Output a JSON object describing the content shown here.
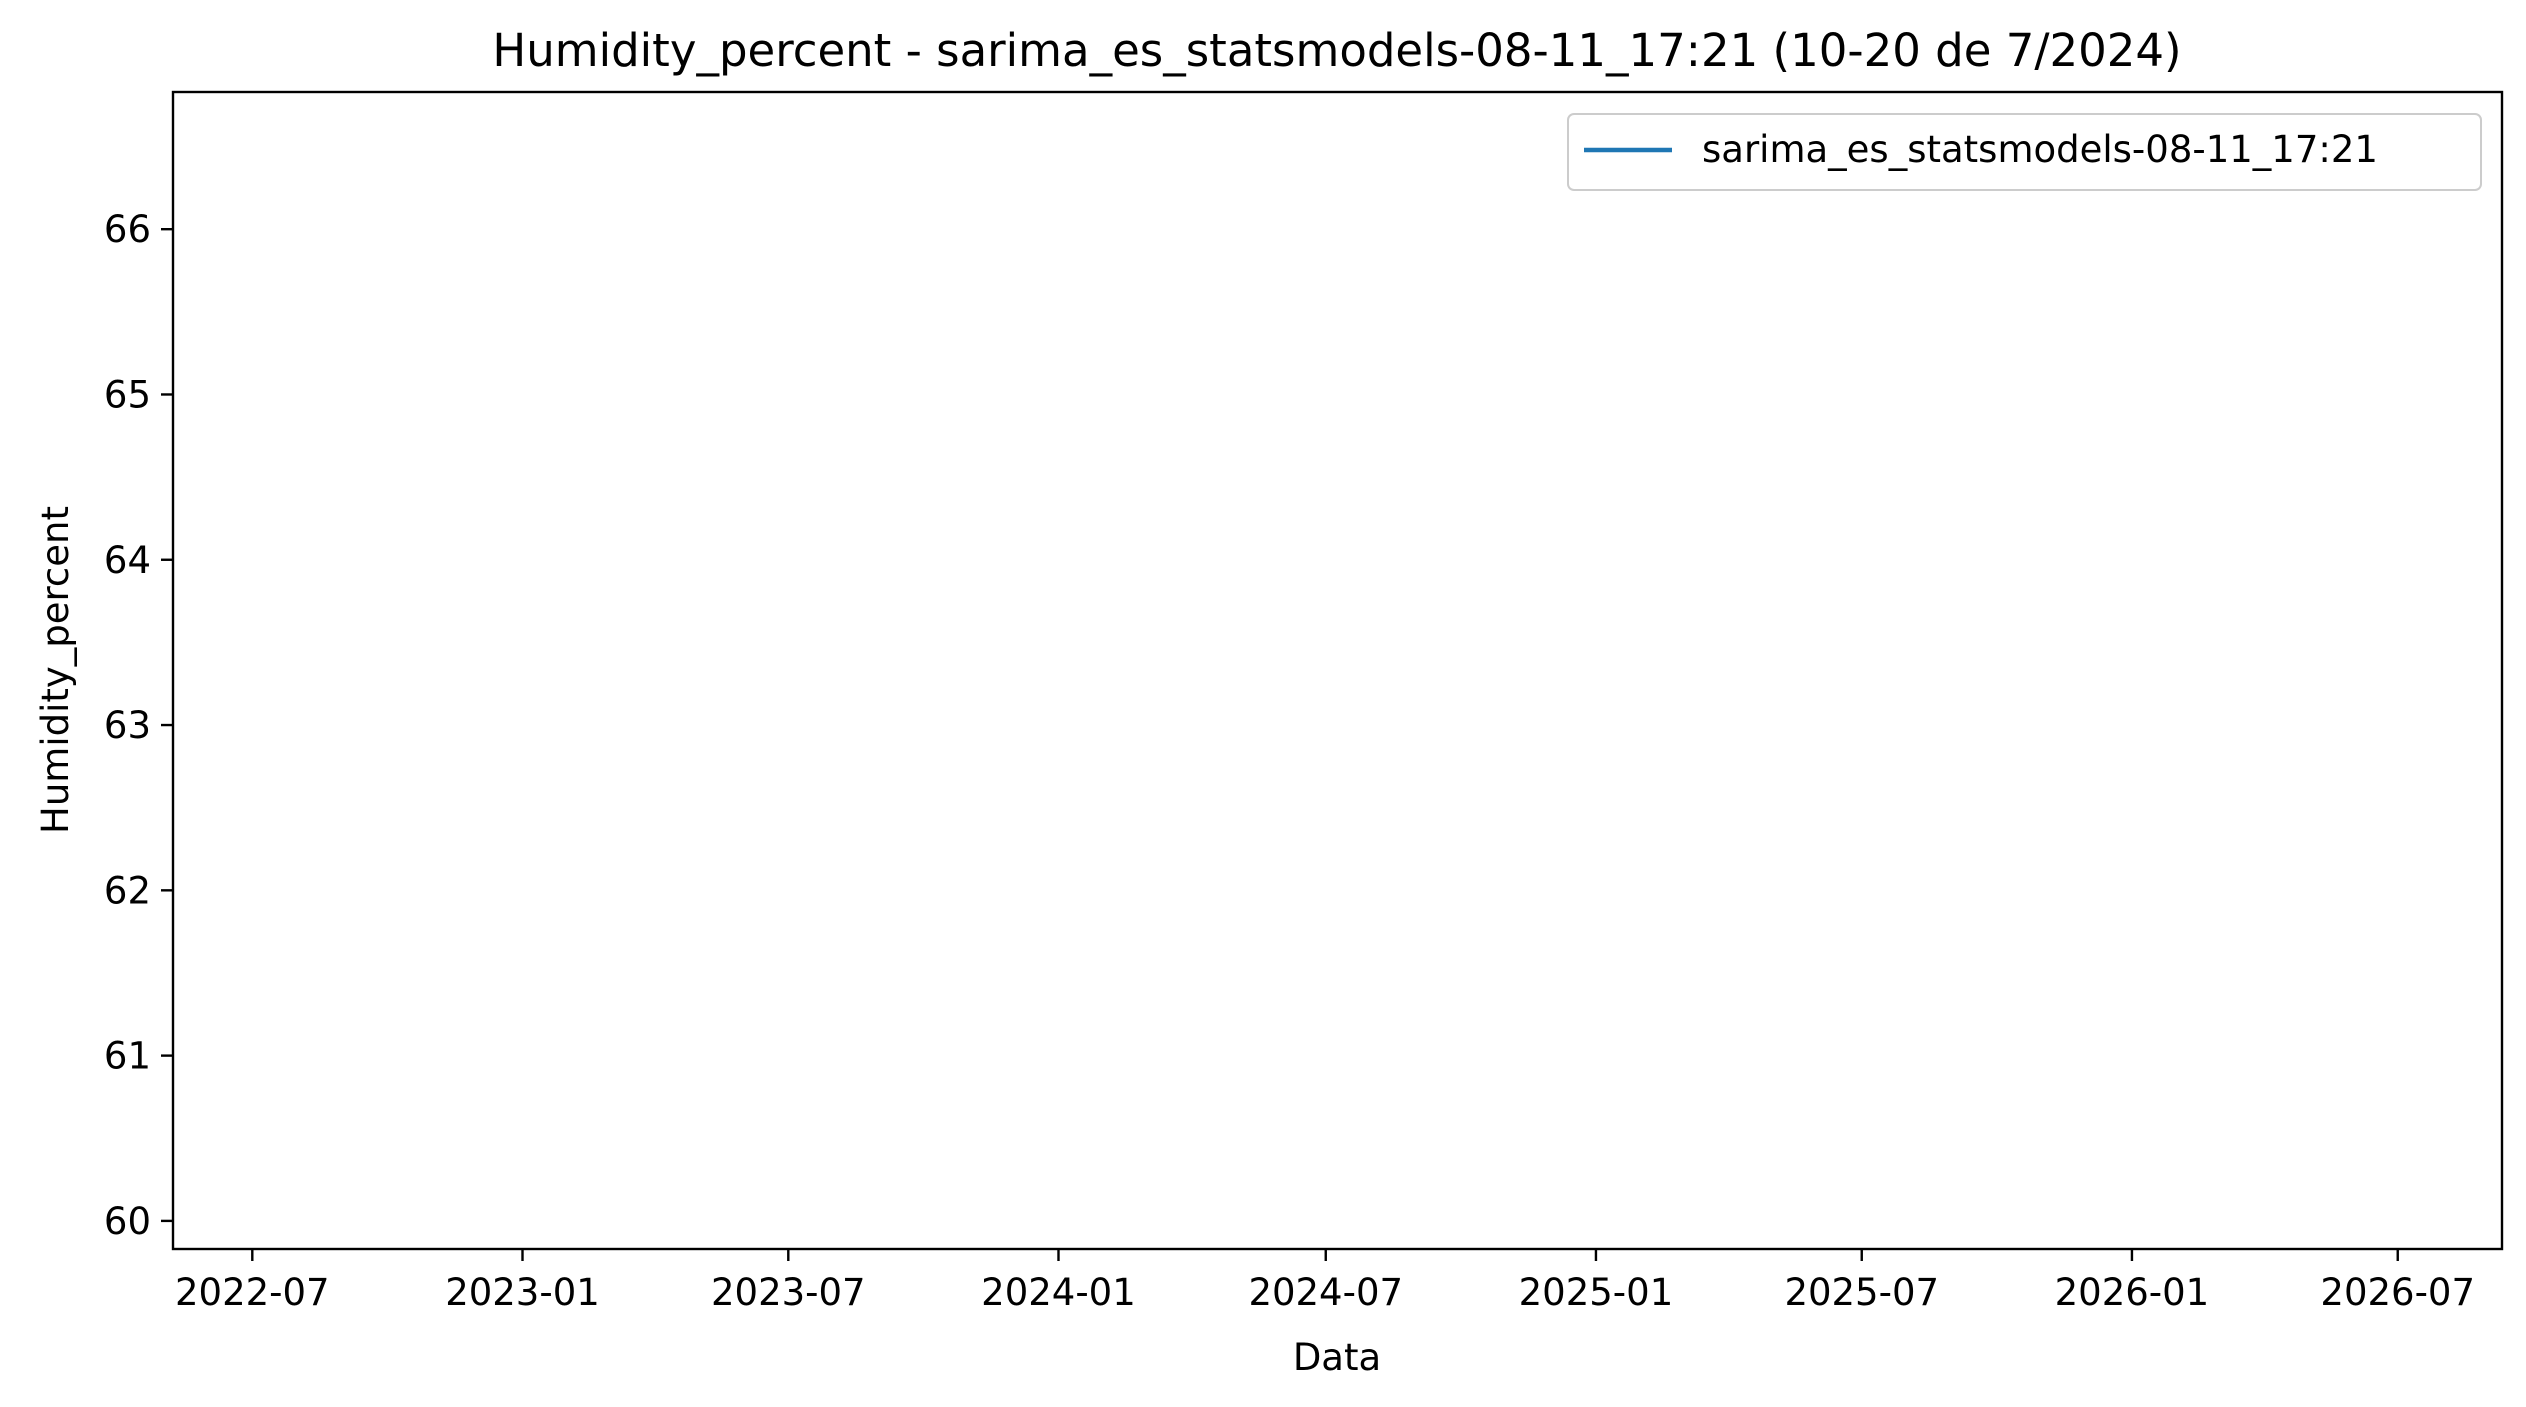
{
  "chart_data": {
    "type": "line",
    "title": "Humidity_percent - sarima_es_statsmodels-08-11_17:21 (10-20 de 7/2024)",
    "xlabel": "Data",
    "ylabel": "Humidity_percent",
    "x_type": "date",
    "xlim": [
      "2022-05-08",
      "2026-09-10"
    ],
    "ylim": [
      59.83,
      66.83
    ],
    "x_ticks": [
      "2022-07",
      "2023-01",
      "2023-07",
      "2024-01",
      "2024-07",
      "2025-01",
      "2025-07",
      "2026-01",
      "2026-07"
    ],
    "x_tick_dates": [
      "2022-07-01",
      "2023-01-01",
      "2023-07-01",
      "2024-01-01",
      "2024-07-01",
      "2025-01-01",
      "2025-07-01",
      "2026-01-01",
      "2026-07-01"
    ],
    "y_ticks": [
      60,
      61,
      62,
      63,
      64,
      65,
      66
    ],
    "grid": false,
    "legend_position": "top-right",
    "series": [
      {
        "name": "sarima_es_statsmodels-08-11_17:21",
        "color": "#1f77b4",
        "x": [],
        "values": []
      }
    ]
  }
}
